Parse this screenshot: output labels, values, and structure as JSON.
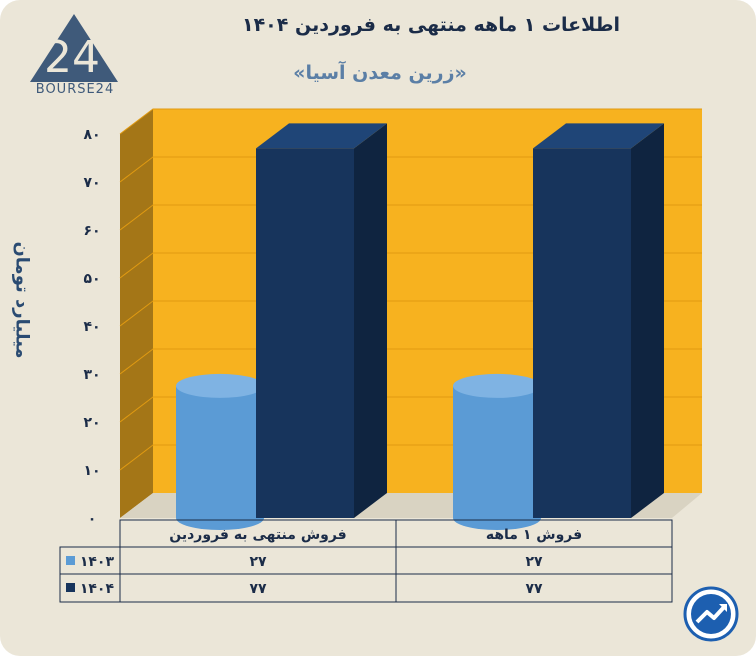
{
  "header": {
    "title": "اطلاعات ۱ ماهه منتهی به فروردین ۱۴۰۴",
    "subtitle": "«زرین معدن آسیا»"
  },
  "logo": {
    "text": "BOURSE24",
    "mark": "24"
  },
  "colors": {
    "background": "#ebe6d8",
    "plot_back": "#f7b21f",
    "plot_side": "#a47617",
    "series_1403": "#5b9bd5",
    "series_1404": "#17345c"
  },
  "chart_data": {
    "type": "bar",
    "style": "3d",
    "ylabel": "میلیارد تومان",
    "ylim": [
      0,
      80
    ],
    "yticks": [
      0,
      10,
      20,
      30,
      40,
      50,
      60,
      70,
      80
    ],
    "ytick_labels": [
      "۰",
      "۱۰",
      "۲۰",
      "۳۰",
      "۴۰",
      "۵۰",
      "۶۰",
      "۷۰",
      "۸۰"
    ],
    "categories": [
      "فروش ۱ ماهه",
      "فروش منتهی به فروردین"
    ],
    "series": [
      {
        "name": "۱۴۰۳",
        "values": [
          27,
          27
        ],
        "value_labels": [
          "۲۷",
          "۲۷"
        ],
        "shape": "cylinder"
      },
      {
        "name": "۱۴۰۴",
        "values": [
          77,
          77
        ],
        "value_labels": [
          "۷۷",
          "۷۷"
        ],
        "shape": "box"
      }
    ],
    "grid": true,
    "legend": "table-below"
  },
  "icons": {
    "logo": "bourse24-logo-icon",
    "badge": "trend-chart-badge-icon"
  }
}
